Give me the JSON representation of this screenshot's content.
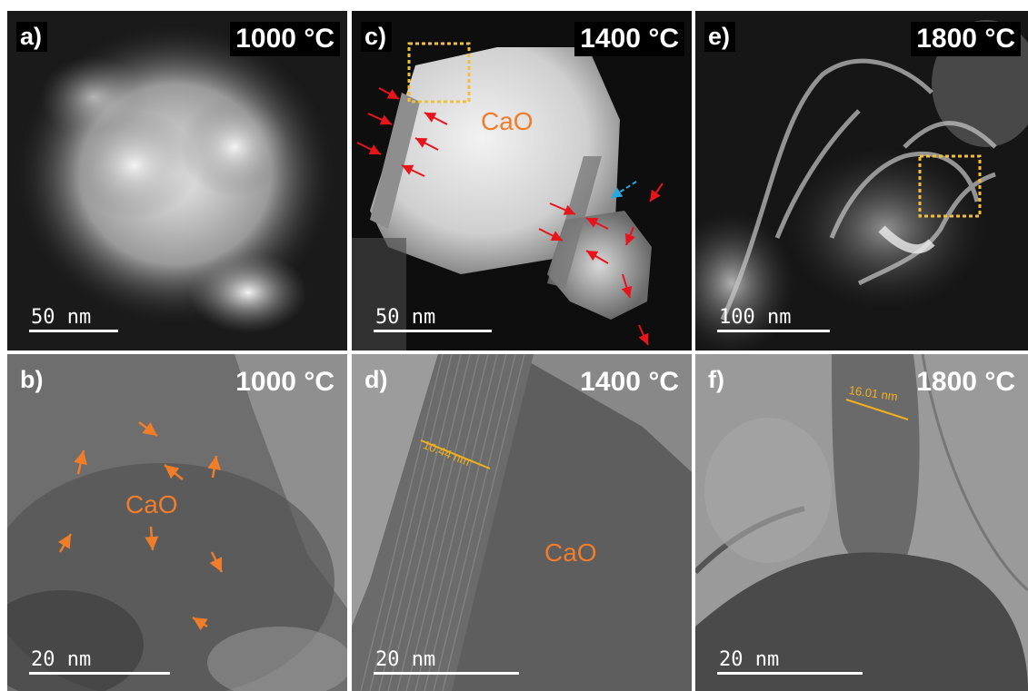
{
  "panels": {
    "a": {
      "letter": "a)",
      "temp": "1000 °C",
      "scale": "50 nm"
    },
    "b": {
      "letter": "b)",
      "temp": "1000 °C",
      "scale": "20 nm",
      "label": "CaO"
    },
    "c": {
      "letter": "c)",
      "temp": "1400 °C",
      "scale": "50 nm",
      "label": "CaO"
    },
    "d": {
      "letter": "d)",
      "temp": "1400 °C",
      "scale": "20 nm",
      "label": "CaO",
      "measure": "10.44 nm"
    },
    "e": {
      "letter": "e)",
      "temp": "1800 °C",
      "scale": "100 nm"
    },
    "f": {
      "letter": "f)",
      "temp": "1800 °C",
      "scale": "20 nm",
      "measure": "16.01 nm"
    }
  },
  "colors": {
    "arrow_red": "#e8141c",
    "arrow_orange": "#f07d2a",
    "arrow_blue": "#29a8e0",
    "box_yellow": "#f2c037",
    "measure_yellow": "#f0b020"
  }
}
